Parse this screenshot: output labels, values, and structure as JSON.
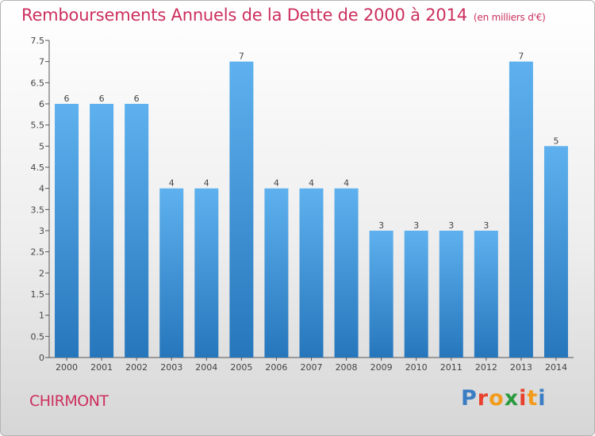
{
  "header": {
    "title": "Remboursements Annuels de la Dette de 2000 à 2014",
    "unit": "(en milliers d'€)"
  },
  "footer": {
    "place": "CHIRMONT",
    "logo": "Proxiti"
  },
  "colors": {
    "accent": "#cc2f5d",
    "bar_top": "#5eb1ee",
    "bar_bottom": "#2676bc",
    "logo_letters": [
      "#3b7dc4",
      "#e8402c",
      "#f39b1c",
      "#2b9a3d",
      "#e8402c",
      "#f39b1c",
      "#3b7dc4"
    ]
  },
  "chart_data": {
    "type": "bar",
    "categories": [
      "2000",
      "2001",
      "2002",
      "2003",
      "2004",
      "2005",
      "2006",
      "2007",
      "2008",
      "2009",
      "2010",
      "2011",
      "2012",
      "2013",
      "2014"
    ],
    "values": [
      6,
      6,
      6,
      4,
      4,
      7,
      4,
      4,
      4,
      3,
      3,
      3,
      3,
      7,
      5
    ],
    "data_labels": [
      "6",
      "6",
      "6",
      "4",
      "4",
      "7",
      "4",
      "4",
      "4",
      "3",
      "3",
      "3",
      "3",
      "7",
      "5"
    ],
    "yticks": [
      "0",
      "0.5",
      "1",
      "1.5",
      "2",
      "2.5",
      "3",
      "3.5",
      "4",
      "4.5",
      "5",
      "5.5",
      "6",
      "6.5",
      "7",
      "7.5"
    ],
    "ylim": [
      0,
      7.5
    ],
    "grid": false,
    "xlabel": "",
    "ylabel": ""
  }
}
